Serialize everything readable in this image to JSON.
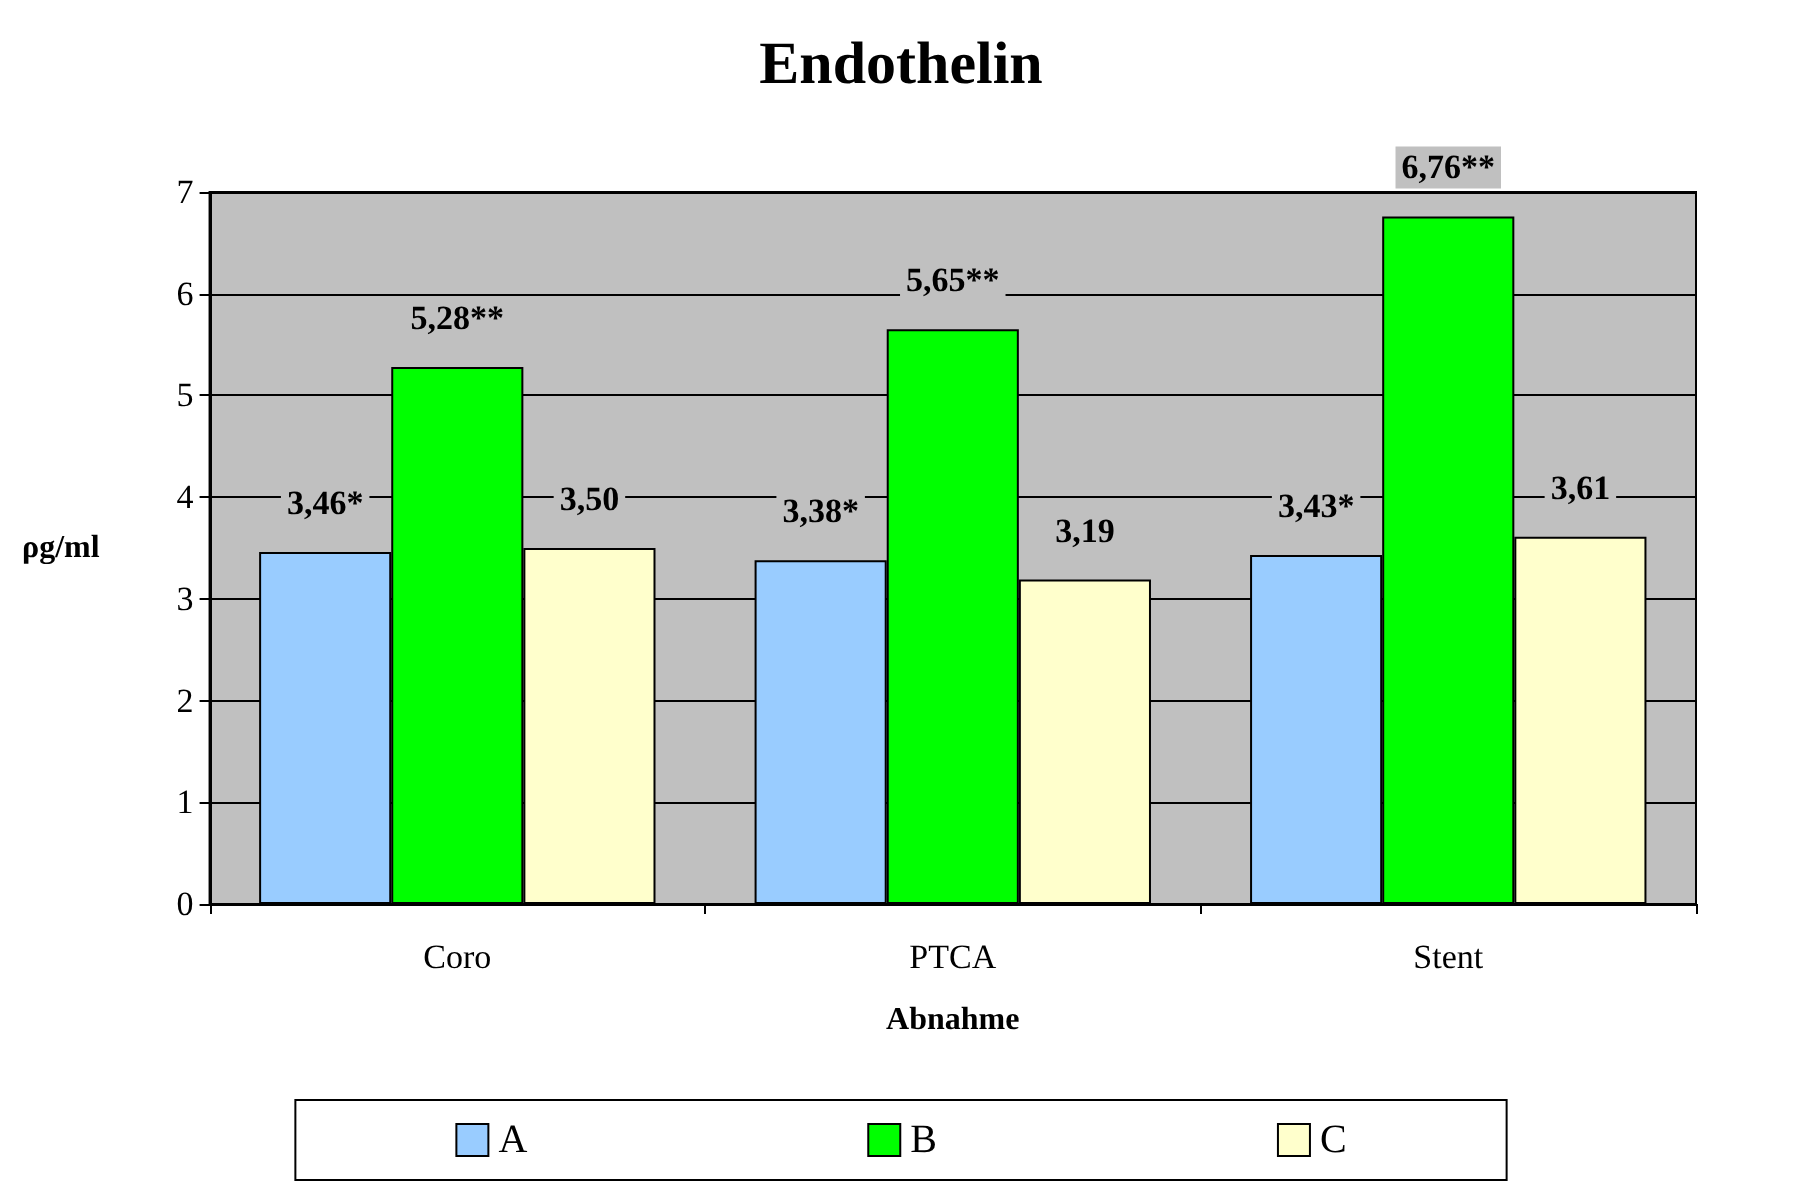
{
  "chart_data": {
    "type": "bar",
    "title": "Endothelin",
    "xlabel": "Abnahme",
    "ylabel": "ρg/ml",
    "categories": [
      "Coro",
      "PTCA",
      "Stent"
    ],
    "series": [
      {
        "name": "A",
        "color": "#99ccff",
        "values": [
          3.46,
          3.38,
          3.43
        ],
        "value_labels": [
          "3,46*",
          "3,38*",
          "3,43*"
        ]
      },
      {
        "name": "B",
        "color": "#00ff00",
        "values": [
          5.28,
          5.65,
          6.76
        ],
        "value_labels": [
          "5,28**",
          "5,65**",
          "6,76**"
        ]
      },
      {
        "name": "C",
        "color": "#ffffcc",
        "values": [
          3.5,
          3.19,
          3.61
        ],
        "value_labels": [
          "3,50",
          "3,19",
          "3,61"
        ]
      }
    ],
    "ylim": [
      0,
      7
    ],
    "yticks": [
      0,
      1,
      2,
      3,
      4,
      5,
      6,
      7
    ],
    "grid": "y",
    "legend": "bottom"
  }
}
